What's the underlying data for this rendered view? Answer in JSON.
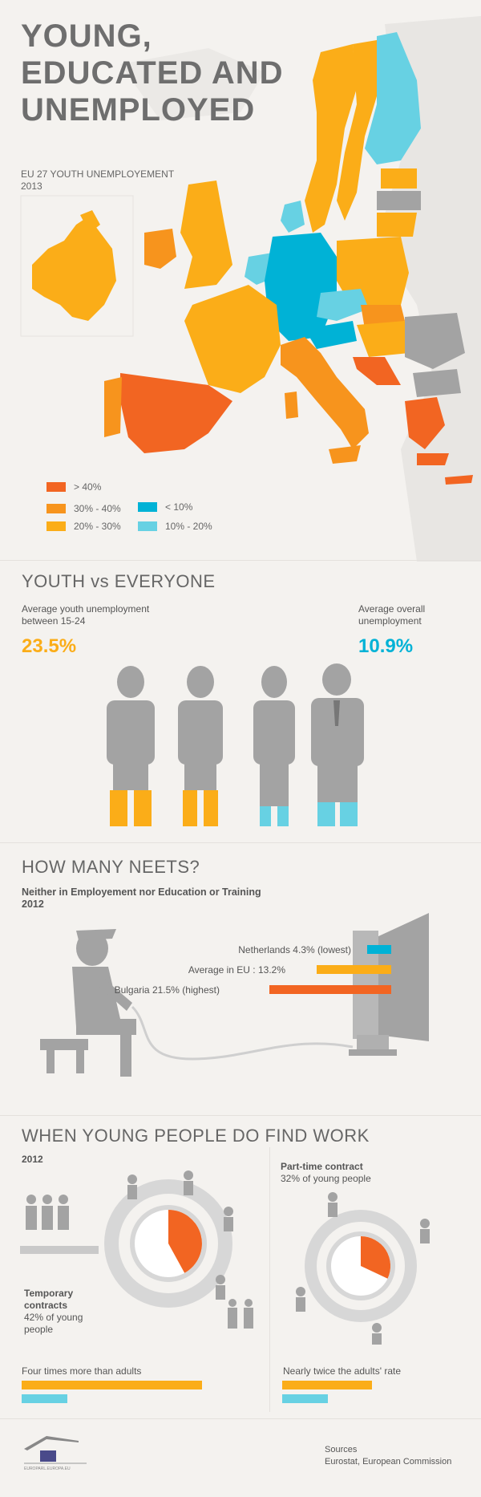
{
  "header": {
    "title_line1": "YOUNG,",
    "title_line2": "EDUCATED AND",
    "title_line3": "UNEMPLOYED",
    "subtitle_line1": "EU 27 YOUTH UNEMPLOYEMENT",
    "subtitle_line2": "2013"
  },
  "legend": [
    {
      "label": "> 40%",
      "color": "#f26522"
    },
    {
      "label": "30% - 40%",
      "color": "#f7941d"
    },
    {
      "label": "20% - 30%",
      "color": "#fbad18"
    },
    {
      "label": "< 10%",
      "color": "#00b2d6"
    },
    {
      "label": "10% - 20%",
      "color": "#67d1e3"
    }
  ],
  "youth_vs_everyone": {
    "heading": "YOUTH vs EVERYONE",
    "youth_label_line1": "Average youth unemployment",
    "youth_label_line2": "between 15-24",
    "youth_value": "23.5%",
    "overall_label_line1": "Average overall",
    "overall_label_line2": "unemployment",
    "overall_value": "10.9%"
  },
  "neets": {
    "heading": "HOW MANY NEETS?",
    "subtitle_line1": "Neither in Employement nor Education or Training",
    "subtitle_line2": "2012",
    "bars": [
      {
        "label": "Netherlands 4.3% (lowest)",
        "value": 4.3,
        "color": "#00b2d6"
      },
      {
        "label": "Average in EU : 13.2%",
        "value": 13.2,
        "color": "#fbad18"
      },
      {
        "label": "Bulgaria 21.5% (highest)",
        "value": 21.5,
        "color": "#f26522"
      }
    ]
  },
  "find_work": {
    "heading": "WHEN YOUNG PEOPLE DO FIND WORK",
    "year": "2012",
    "temporary_title_line1": "Temporary",
    "temporary_title_line2": "contracts",
    "temporary_desc_line1": "42% of young",
    "temporary_desc_line2": "people",
    "temporary_share": 0.42,
    "temporary_compare": "Four times more than adults",
    "parttime_title": "Part-time contract",
    "parttime_desc": "32% of young people",
    "parttime_share": 0.32,
    "parttime_compare": "Nearly twice the adults' rate"
  },
  "footer": {
    "sources_label": "Sources",
    "sources_text": "Eurostat, European Commission",
    "logo_text": "EUROPARL.EUROPA.EU"
  },
  "colors": {
    "orange_red": "#f26522",
    "orange": "#f7941d",
    "yellow_orange": "#fbad18",
    "blue": "#00b2d6",
    "light_blue": "#67d1e3",
    "grey": "#a3a3a3"
  }
}
